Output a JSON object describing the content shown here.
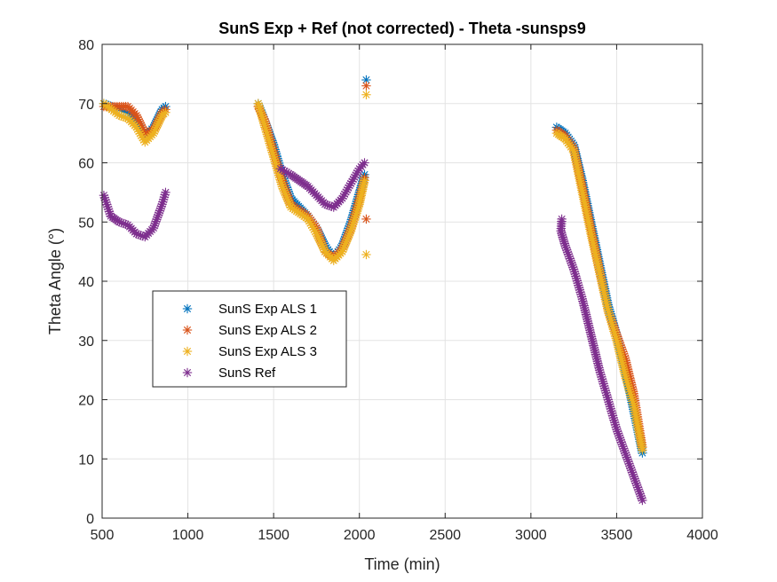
{
  "chart_data": {
    "type": "scatter",
    "title": "SunS Exp + Ref (not corrected) - Theta -sunsps9",
    "xlabel": "Time (min)",
    "ylabel": "Theta Angle (°)",
    "xlim": [
      500,
      4000
    ],
    "ylim": [
      0,
      80
    ],
    "xticks": [
      "500",
      "1000",
      "1500",
      "2000",
      "2500",
      "3000",
      "3500",
      "4000"
    ],
    "yticks": [
      "0",
      "10",
      "20",
      "30",
      "40",
      "50",
      "60",
      "70",
      "80"
    ],
    "grid": true,
    "legend_position": "center-left",
    "marker": "asterisk",
    "series": [
      {
        "name": "SunS Exp ALS 1",
        "color": "#0072BD",
        "segments": [
          [
            [
              510,
              70
            ],
            [
              600,
              69
            ],
            [
              650,
              68.5
            ],
            [
              700,
              67
            ],
            [
              750,
              64.5
            ],
            [
              800,
              66
            ],
            [
              850,
              69
            ],
            [
              870,
              69.5
            ]
          ],
          [
            [
              1410,
              70
            ],
            [
              1450,
              67
            ],
            [
              1500,
              63
            ],
            [
              1550,
              58
            ],
            [
              1600,
              54
            ],
            [
              1700,
              51
            ],
            [
              1750,
              49
            ],
            [
              1800,
              46
            ],
            [
              1850,
              44
            ],
            [
              1900,
              46
            ],
            [
              1950,
              50
            ],
            [
              2000,
              55
            ],
            [
              2030,
              58
            ]
          ],
          [
            [
              2040,
              74
            ]
          ],
          [
            [
              3150,
              66
            ],
            [
              3200,
              65
            ],
            [
              3250,
              63
            ],
            [
              3300,
              57
            ],
            [
              3350,
              50
            ],
            [
              3400,
              43
            ],
            [
              3450,
              36
            ],
            [
              3500,
              31
            ],
            [
              3550,
              25
            ],
            [
              3600,
              18
            ],
            [
              3650,
              11
            ]
          ]
        ]
      },
      {
        "name": "SunS Exp ALS 2",
        "color": "#D95319",
        "segments": [
          [
            [
              510,
              69.5
            ],
            [
              600,
              69.5
            ],
            [
              650,
              69.5
            ],
            [
              700,
              68
            ],
            [
              750,
              65
            ],
            [
              800,
              65.5
            ],
            [
              850,
              68.5
            ],
            [
              870,
              69
            ]
          ],
          [
            [
              1410,
              69.5
            ],
            [
              1450,
              67
            ],
            [
              1500,
              62
            ],
            [
              1550,
              57
            ],
            [
              1600,
              53
            ],
            [
              1700,
              51
            ],
            [
              1750,
              49
            ],
            [
              1800,
              45
            ],
            [
              1850,
              44
            ],
            [
              1900,
              45.5
            ],
            [
              1950,
              49
            ],
            [
              2000,
              54
            ],
            [
              2030,
              57.5
            ]
          ],
          [
            [
              2040,
              73
            ]
          ],
          [
            [
              2040,
              50.5
            ]
          ],
          [
            [
              3150,
              65.5
            ],
            [
              3200,
              64.5
            ],
            [
              3250,
              62.5
            ],
            [
              3300,
              56
            ],
            [
              3350,
              49
            ],
            [
              3400,
              42
            ],
            [
              3450,
              35
            ],
            [
              3500,
              31
            ],
            [
              3550,
              27
            ],
            [
              3600,
              21
            ],
            [
              3650,
              12
            ]
          ]
        ]
      },
      {
        "name": "SunS Exp ALS 3",
        "color": "#EDB120",
        "segments": [
          [
            [
              510,
              70
            ],
            [
              600,
              68
            ],
            [
              650,
              67.5
            ],
            [
              700,
              66
            ],
            [
              750,
              63.5
            ],
            [
              800,
              65
            ],
            [
              850,
              68
            ],
            [
              870,
              68.5
            ]
          ],
          [
            [
              1410,
              70
            ],
            [
              1450,
              66
            ],
            [
              1500,
              61
            ],
            [
              1550,
              56
            ],
            [
              1600,
              52.5
            ],
            [
              1700,
              50.5
            ],
            [
              1750,
              48
            ],
            [
              1800,
              45
            ],
            [
              1850,
              43.5
            ],
            [
              1900,
              45
            ],
            [
              1950,
              48.5
            ],
            [
              2000,
              53
            ],
            [
              2030,
              57
            ]
          ],
          [
            [
              2040,
              71.5
            ]
          ],
          [
            [
              2040,
              44.5
            ]
          ],
          [
            [
              3150,
              65
            ],
            [
              3200,
              64
            ],
            [
              3250,
              62
            ],
            [
              3300,
              55
            ],
            [
              3350,
              48
            ],
            [
              3400,
              41.5
            ],
            [
              3450,
              35
            ],
            [
              3500,
              30
            ],
            [
              3550,
              24
            ],
            [
              3600,
              19
            ],
            [
              3650,
              11.5
            ]
          ]
        ]
      },
      {
        "name": "SunS Ref",
        "color": "#7E2F8E",
        "segments": [
          [
            [
              510,
              54.5
            ],
            [
              550,
              51
            ],
            [
              600,
              50
            ],
            [
              650,
              49.5
            ],
            [
              700,
              48
            ],
            [
              750,
              47.5
            ],
            [
              800,
              49
            ],
            [
              850,
              53
            ],
            [
              870,
              55
            ]
          ],
          [
            [
              1540,
              59
            ],
            [
              1600,
              58
            ],
            [
              1650,
              57
            ],
            [
              1700,
              56
            ],
            [
              1750,
              54.5
            ],
            [
              1800,
              53
            ],
            [
              1850,
              52.5
            ],
            [
              1900,
              54
            ],
            [
              1950,
              56.5
            ],
            [
              2000,
              59
            ],
            [
              2030,
              60
            ]
          ],
          [
            [
              3180,
              50.5
            ],
            [
              3175,
              48.5
            ],
            [
              3200,
              46
            ],
            [
              3250,
              42
            ],
            [
              3300,
              37
            ],
            [
              3350,
              31
            ],
            [
              3400,
              25
            ],
            [
              3450,
              20
            ],
            [
              3500,
              15
            ],
            [
              3550,
              11
            ],
            [
              3600,
              7
            ],
            [
              3650,
              3
            ]
          ]
        ]
      }
    ]
  }
}
